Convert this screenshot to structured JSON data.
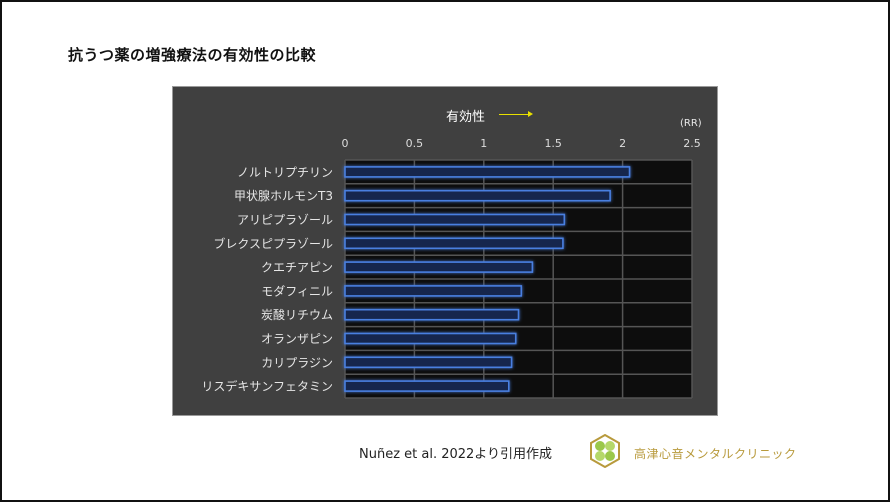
{
  "slide": {
    "title": "抗うつ薬の増強療法の有効性の比較",
    "citation": "Nuñez et al. 2022より引用作成",
    "clinic_name": "高津心音メンタルクリニック",
    "logo_icon": "clover-hexagon-logo-icon"
  },
  "colors": {
    "panel_bg": "#404040",
    "plot_bg": "#0d0d0d",
    "bar_fill": "#12264d",
    "bar_edge": "#4a7fe0",
    "arrow": "#e8e000",
    "clinic_text": "#b89a3c"
  },
  "chart_data": {
    "type": "bar",
    "orientation": "horizontal",
    "title": "有効性",
    "direction_annotation": "有効性 →",
    "xlabel": "",
    "unit_label": "(RR)",
    "xlim": [
      0,
      2.5
    ],
    "xticks": [
      "0",
      "0.5",
      "1",
      "1.5",
      "2",
      "2.5"
    ],
    "grid": true,
    "categories": [
      "ノルトリプチリン",
      "甲状腺ホルモンT3",
      "アリピプラゾール",
      "ブレクスピプラゾール",
      "クエチアピン",
      "モダフィニル",
      "炭酸リチウム",
      "オランザピン",
      "カリプラジン",
      "リスデキサンフェタミン"
    ],
    "values": [
      2.05,
      1.91,
      1.58,
      1.57,
      1.35,
      1.27,
      1.25,
      1.23,
      1.2,
      1.18
    ]
  }
}
